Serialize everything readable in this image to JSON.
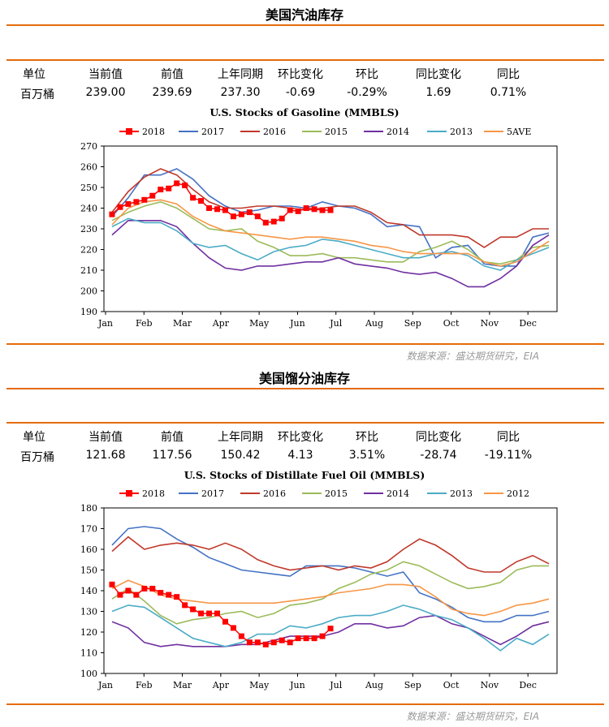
{
  "gasoline": {
    "title": "美国汽油库存",
    "table": {
      "headers": [
        "单位",
        "当前值",
        "前值",
        "上年同期",
        "环比变化",
        "环比",
        "同比变化",
        "同比"
      ],
      "values": [
        "百万桶",
        "239.00",
        "239.69",
        "237.30",
        "-0.69",
        "-0.29%",
        "1.69",
        "0.71%"
      ]
    },
    "source": "数据来源：盛达期货研究，EIA"
  },
  "distillate": {
    "title": "美国馏分油库存",
    "table": {
      "headers": [
        "单位",
        "当前值",
        "前值",
        "上年同期",
        "环比变化",
        "环比",
        "同比变化",
        "同比"
      ],
      "values": [
        "百万桶",
        "121.68",
        "117.56",
        "150.42",
        "4.13",
        "3.51%",
        "-28.74",
        "-19.11%"
      ]
    },
    "source": "数据来源：盛达期货研究，EIA"
  },
  "chart_data": [
    {
      "type": "line",
      "title": "U.S. Stocks of Gasoline (MMBLS)",
      "xlabel": "",
      "ylabel": "",
      "x_ticks": [
        "Jan",
        "Feb",
        "Mar",
        "Apr",
        "May",
        "Jun",
        "Jul",
        "Aug",
        "Sep",
        "Oct",
        "Nov",
        "Dec"
      ],
      "ylim": [
        190,
        270
      ],
      "y_ticks": [
        190,
        200,
        210,
        220,
        230,
        240,
        250,
        260,
        270
      ],
      "grid": false,
      "legend": "top",
      "series": [
        {
          "name": "2018",
          "color": "#ff0000",
          "marker": "square",
          "x": [
            1,
            2,
            3,
            4,
            5,
            6,
            7,
            8,
            9,
            10,
            11,
            12,
            13,
            14,
            15,
            16,
            17,
            18,
            19,
            20,
            21,
            22,
            23,
            24,
            25,
            26,
            27,
            28
          ],
          "values": [
            237,
            240.5,
            242,
            243,
            244,
            246,
            249,
            249.5,
            252,
            251,
            245,
            243.5,
            240,
            239.5,
            239,
            236,
            237,
            238,
            236,
            233,
            233.5,
            235,
            239,
            238.5,
            240,
            239.5,
            239,
            239
          ]
        },
        {
          "name": "2017",
          "color": "#4472c4",
          "x": [
            1,
            3,
            5,
            7,
            9,
            11,
            13,
            15,
            17,
            19,
            21,
            23,
            25,
            27,
            29,
            31,
            33,
            35,
            37,
            39,
            41,
            43,
            45,
            47,
            49,
            51,
            53,
            55
          ],
          "values": [
            236,
            245,
            256,
            256,
            259,
            254,
            246,
            241,
            238,
            239,
            241,
            241,
            240,
            243,
            241,
            240,
            237,
            231,
            232,
            231,
            216,
            221,
            222,
            213,
            212,
            212,
            226,
            228
          ]
        },
        {
          "name": "2016",
          "color": "#c0392b",
          "x": [
            1,
            3,
            5,
            7,
            9,
            11,
            13,
            15,
            17,
            19,
            21,
            23,
            25,
            27,
            29,
            31,
            33,
            35,
            37,
            39,
            41,
            43,
            45,
            47,
            49,
            51,
            53,
            55
          ],
          "values": [
            238,
            248,
            255,
            259,
            256,
            249,
            243,
            240,
            240,
            241,
            241,
            240,
            239,
            240,
            241,
            241,
            238,
            233,
            232,
            227,
            227,
            227,
            226,
            221,
            226,
            226,
            230,
            230
          ]
        },
        {
          "name": "2015",
          "color": "#9bbb59",
          "x": [
            1,
            3,
            5,
            7,
            9,
            11,
            13,
            15,
            17,
            19,
            21,
            23,
            25,
            27,
            29,
            31,
            33,
            35,
            37,
            39,
            41,
            43,
            45,
            47,
            49,
            51,
            53,
            55
          ],
          "values": [
            234,
            238,
            241,
            243,
            240,
            235,
            230,
            229,
            230,
            224,
            221,
            217,
            217,
            218,
            216,
            216,
            215,
            214,
            214,
            219,
            221,
            224,
            220,
            214,
            213,
            215,
            221,
            222
          ]
        },
        {
          "name": "2014",
          "color": "#7030a0",
          "x": [
            1,
            3,
            5,
            7,
            9,
            11,
            13,
            15,
            17,
            19,
            21,
            23,
            25,
            27,
            29,
            31,
            33,
            35,
            37,
            39,
            41,
            43,
            45,
            47,
            49,
            51,
            53,
            55
          ],
          "values": [
            227,
            234,
            234,
            234,
            231,
            223,
            216,
            211,
            210,
            212,
            212,
            213,
            214,
            214,
            216,
            213,
            212,
            211,
            209,
            208,
            209,
            206,
            202,
            202,
            206,
            212,
            222,
            227
          ]
        },
        {
          "name": "2013",
          "color": "#4bacc6",
          "x": [
            1,
            3,
            5,
            7,
            9,
            11,
            13,
            15,
            17,
            19,
            21,
            23,
            25,
            27,
            29,
            31,
            33,
            35,
            37,
            39,
            41,
            43,
            45,
            47,
            49,
            51,
            53,
            55
          ],
          "values": [
            231,
            235,
            233,
            233,
            229,
            223,
            221,
            222,
            218,
            215,
            219,
            221,
            222,
            225,
            224,
            222,
            220,
            218,
            216,
            216,
            218,
            219,
            217,
            212,
            210,
            215,
            218,
            221
          ]
        },
        {
          "name": "5AVE",
          "color": "#f79646",
          "x": [
            1,
            3,
            5,
            7,
            9,
            11,
            13,
            15,
            17,
            19,
            21,
            23,
            25,
            27,
            29,
            31,
            33,
            35,
            37,
            39,
            41,
            43,
            45,
            47,
            49,
            51,
            53,
            55
          ],
          "values": [
            232,
            240,
            243,
            244,
            242,
            236,
            232,
            229,
            228,
            227,
            226,
            225,
            226,
            226,
            225,
            224,
            222,
            221,
            219,
            218,
            218,
            218,
            218,
            214,
            212,
            214,
            219,
            224
          ]
        }
      ]
    },
    {
      "type": "line",
      "title": "U.S. Stocks of Distillate Fuel Oil (MMBLS)",
      "xlabel": "",
      "ylabel": "",
      "x_ticks": [
        "Jan",
        "Feb",
        "Mar",
        "Apr",
        "May",
        "Jun",
        "Jul",
        "Aug",
        "Sep",
        "Oct",
        "Nov",
        "Dec"
      ],
      "ylim": [
        100,
        180
      ],
      "y_ticks": [
        100,
        110,
        120,
        130,
        140,
        150,
        160,
        170,
        180
      ],
      "grid": false,
      "legend": "top",
      "series": [
        {
          "name": "2018",
          "color": "#ff0000",
          "marker": "square",
          "x": [
            1,
            2,
            3,
            4,
            5,
            6,
            7,
            8,
            9,
            10,
            11,
            12,
            13,
            14,
            15,
            16,
            17,
            18,
            19,
            20,
            21,
            22,
            23,
            24,
            25,
            26,
            27,
            28
          ],
          "values": [
            143,
            138,
            140,
            138,
            141,
            141,
            139,
            138,
            137,
            133,
            131,
            129,
            129,
            129,
            125,
            122,
            118,
            115,
            115,
            114,
            115,
            116,
            115,
            117,
            117,
            117,
            118,
            121.7
          ]
        },
        {
          "name": "2017",
          "color": "#4472c4",
          "x": [
            1,
            3,
            5,
            7,
            9,
            11,
            13,
            15,
            17,
            19,
            21,
            23,
            25,
            27,
            29,
            31,
            33,
            35,
            37,
            39,
            41,
            43,
            45,
            47,
            49,
            51,
            53,
            55
          ],
          "values": [
            162,
            170,
            171,
            170,
            165,
            161,
            156,
            153,
            150,
            149,
            148,
            147,
            152,
            152,
            152,
            151,
            149,
            147,
            149,
            139,
            136,
            132,
            127,
            125,
            125,
            128,
            128,
            130
          ]
        },
        {
          "name": "2016",
          "color": "#c0392b",
          "x": [
            1,
            3,
            5,
            7,
            9,
            11,
            13,
            15,
            17,
            19,
            21,
            23,
            25,
            27,
            29,
            31,
            33,
            35,
            37,
            39,
            41,
            43,
            45,
            47,
            49,
            51,
            53,
            55
          ],
          "values": [
            159,
            166,
            160,
            162,
            163,
            162,
            160,
            163,
            160,
            155,
            152,
            150,
            151,
            152,
            150,
            152,
            151,
            154,
            160,
            165,
            162,
            157,
            151,
            149,
            149,
            154,
            157,
            153
          ]
        },
        {
          "name": "2015",
          "color": "#9bbb59",
          "x": [
            1,
            3,
            5,
            7,
            9,
            11,
            13,
            15,
            17,
            19,
            21,
            23,
            25,
            27,
            29,
            31,
            33,
            35,
            37,
            39,
            41,
            43,
            45,
            47,
            49,
            51,
            53,
            55
          ],
          "values": [
            136,
            141,
            135,
            128,
            124,
            126,
            127,
            129,
            130,
            127,
            129,
            133,
            134,
            136,
            141,
            144,
            148,
            150,
            154,
            152,
            148,
            144,
            141,
            142,
            144,
            150,
            152,
            152
          ]
        },
        {
          "name": "2014",
          "color": "#7030a0",
          "x": [
            1,
            3,
            5,
            7,
            9,
            11,
            13,
            15,
            17,
            19,
            21,
            23,
            25,
            27,
            29,
            31,
            33,
            35,
            37,
            39,
            41,
            43,
            45,
            47,
            49,
            51,
            53,
            55
          ],
          "values": [
            125,
            122,
            115,
            113,
            114,
            113,
            113,
            113,
            114,
            114,
            116,
            118,
            118,
            118,
            120,
            124,
            124,
            122,
            123,
            127,
            128,
            124,
            122,
            118,
            114,
            118,
            123,
            125
          ]
        },
        {
          "name": "2013",
          "color": "#4bacc6",
          "x": [
            1,
            3,
            5,
            7,
            9,
            11,
            13,
            15,
            17,
            19,
            21,
            23,
            25,
            27,
            29,
            31,
            33,
            35,
            37,
            39,
            41,
            43,
            45,
            47,
            49,
            51,
            53,
            55
          ],
          "values": [
            130,
            133,
            132,
            127,
            122,
            117,
            115,
            113,
            115,
            119,
            119,
            123,
            122,
            124,
            127,
            128,
            128,
            130,
            133,
            131,
            128,
            126,
            122,
            117,
            111,
            117,
            114,
            119
          ]
        },
        {
          "name": "2012",
          "color": "#f79646",
          "x": [
            1,
            3,
            5,
            7,
            9,
            11,
            13,
            15,
            17,
            19,
            21,
            23,
            25,
            27,
            29,
            31,
            33,
            35,
            37,
            39,
            41,
            43,
            45,
            47,
            49,
            51,
            53,
            55
          ],
          "values": [
            141,
            145,
            142,
            138,
            136,
            135,
            134,
            134,
            134,
            134,
            134,
            135,
            136,
            137,
            139,
            140,
            141,
            143,
            143,
            142,
            137,
            131,
            129,
            128,
            130,
            133,
            134,
            136
          ]
        }
      ]
    }
  ]
}
